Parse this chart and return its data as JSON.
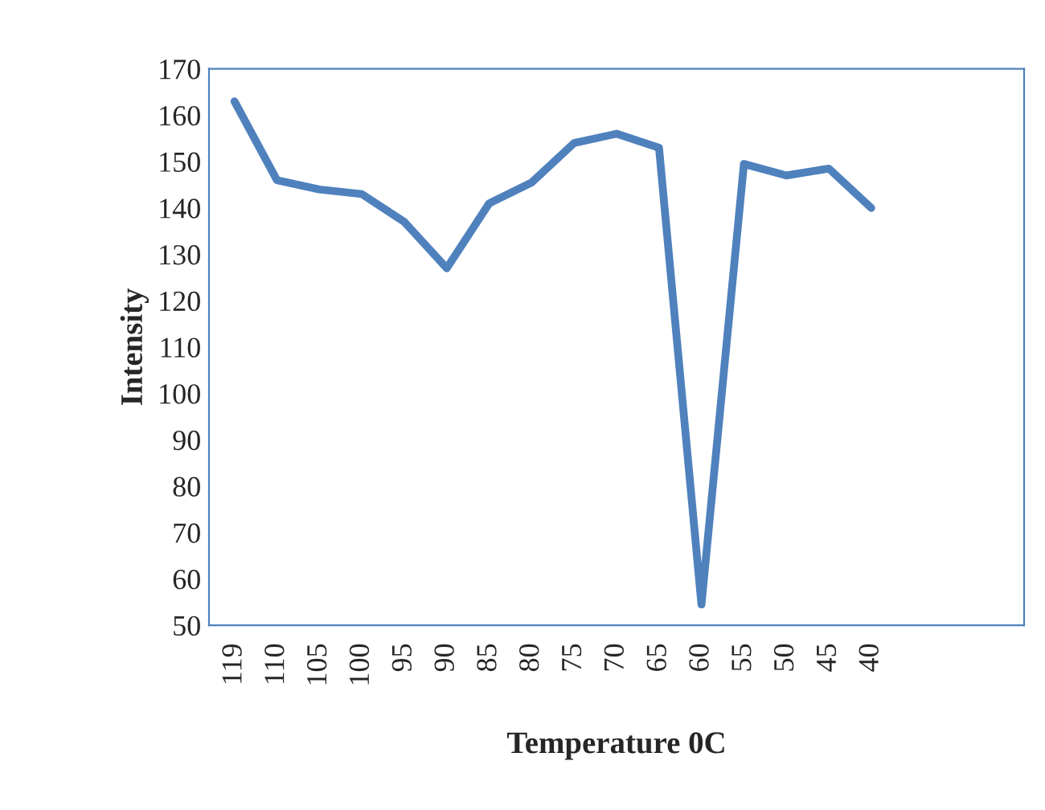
{
  "chart_data": {
    "type": "line",
    "xlabel": "Temperature 0C",
    "ylabel": "Intensity",
    "categories": [
      "119",
      "110",
      "105",
      "100",
      "95",
      "90",
      "85",
      "80",
      "75",
      "70",
      "65",
      "60",
      "55",
      "50",
      "45",
      "40",
      null,
      null,
      null
    ],
    "series": [
      {
        "color": "#4f81bd",
        "values": [
          163,
          146,
          144,
          143,
          137,
          127,
          141,
          145.5,
          154,
          156,
          153,
          54.5,
          149.5,
          147,
          148.5,
          140,
          null,
          null,
          null
        ]
      }
    ],
    "ylim": [
      50,
      170
    ],
    "yticks": [
      50,
      60,
      70,
      80,
      90,
      100,
      110,
      120,
      130,
      140,
      150,
      160,
      170
    ],
    "grid": false,
    "marker": "none",
    "line_style": "solid"
  }
}
